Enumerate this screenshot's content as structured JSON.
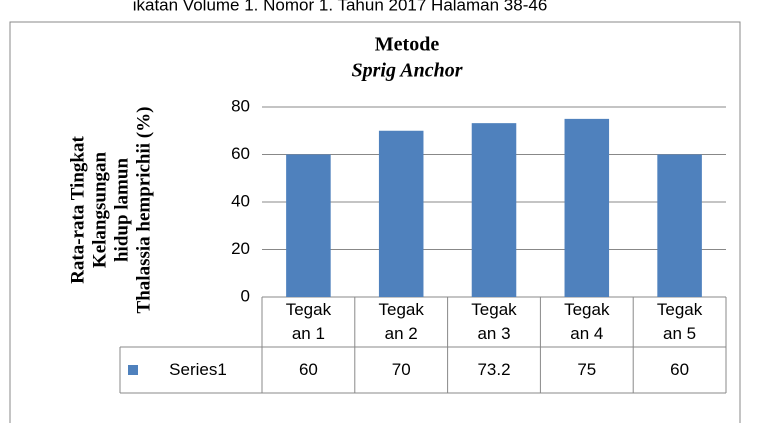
{
  "header": {
    "text": "ikatan Volume 1. Nomor 1. Tahun 2017 Halaman 38-46"
  },
  "chart_data": {
    "type": "bar",
    "title": "Metode",
    "subtitle": "Sprig Anchor",
    "y_label": [
      "Rata-rata Tingkat",
      "Kelangsungan",
      "hidup lamun",
      "Thalassia hemprichii (%)"
    ],
    "categories": [
      "Tegakan 1",
      "Tegakan 2",
      "Tegakan 3",
      "Tegakan 4",
      "Tegakan 5"
    ],
    "series": [
      {
        "name": "Series1",
        "color": "#4f81bd",
        "values": [
          60,
          70,
          73.2,
          75,
          60
        ]
      }
    ],
    "ylim": [
      0,
      80
    ],
    "yticks": [
      0,
      20,
      40,
      60,
      80
    ],
    "grid": true,
    "data_table": true
  }
}
